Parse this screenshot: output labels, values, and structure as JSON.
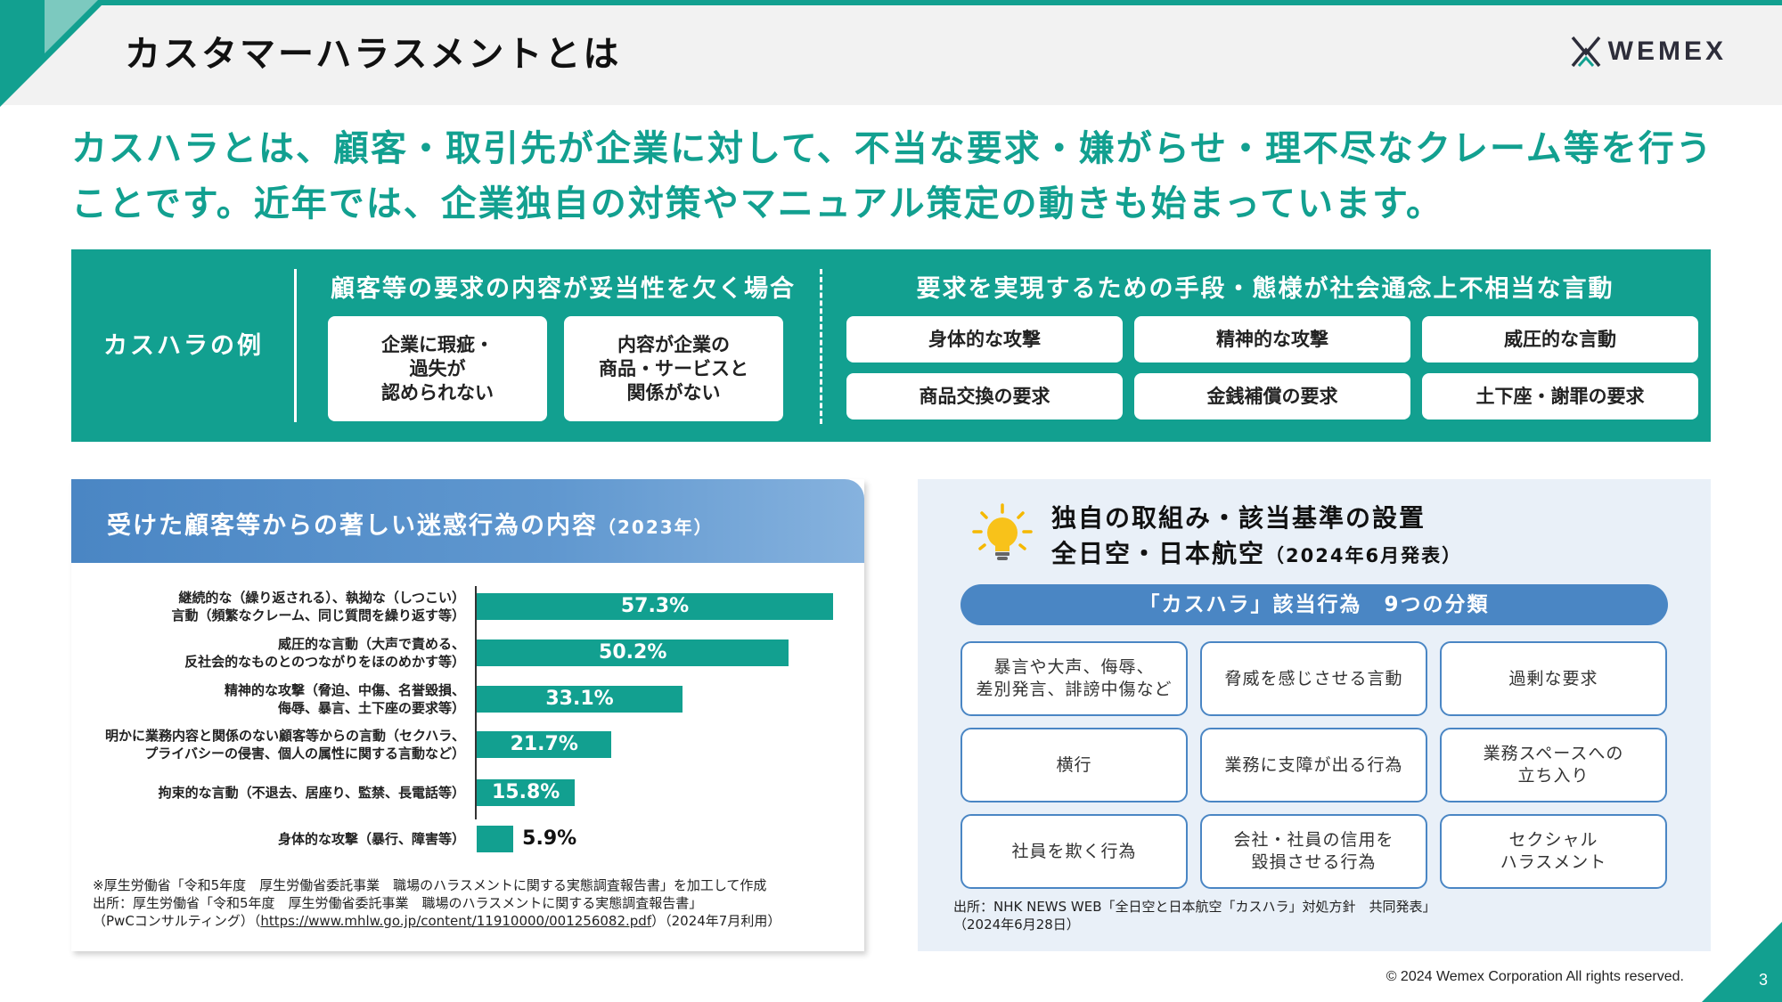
{
  "header": {
    "title": "カスタマーハラスメントとは",
    "logo_text": "WEMEX"
  },
  "lead": {
    "text": "カスハラとは、顧客・取引先が企業に対して、不当な要求・嫌がらせ・理不尽なクレーム等を行うことです。近年では、企業独自の対策やマニュアル策定の動きも始まっています。"
  },
  "examples": {
    "label": "カスハラの例",
    "group1_title": "顧客等の要求の内容が妥当性を欠く場合",
    "group1_items": [
      "企業に瑕疵・\n過失が\n認められない",
      "内容が企業の\n商品・サービスと\n関係がない"
    ],
    "group2_title": "要求を実現するための手段・態様が社会通念上不相当な言動",
    "group2_items": [
      "身体的な攻撃",
      "精神的な攻撃",
      "威圧的な言動",
      "商品交換の要求",
      "金銭補償の要求",
      "土下座・謝罪の要求"
    ]
  },
  "left_panel": {
    "title": "受けた顧客等からの著しい迷惑行為の内容",
    "title_year": "（2023年）",
    "note": "※厚生労働省「令和5年度　厚生労働省委託事業　職場のハラスメントに関する実態調査報告書」を加工して作成",
    "source1": "出所：厚生労働省「令和5年度　厚生労働省委託事業　職場のハラスメントに関する実態調査報告書」",
    "source2_pre": "（PwCコンサルティング）（",
    "source2_link": "https://www.mhlw.go.jp/content/11910000/001256082.pdf",
    "source2_post": "）（2024年7月利用）"
  },
  "chart_data": {
    "type": "bar",
    "orientation": "horizontal",
    "categories": [
      "継続的な（繰り返される）、執拗な（しつこい）\n言動（頻繁なクレーム、同じ質問を繰り返す等）",
      "威圧的な言動（大声で責める、\n反社会的なものとのつながりをほのめかす等）",
      "精神的な攻撃（脅迫、中傷、名誉毀損、\n侮辱、暴言、土下座の要求等）",
      "明かに業務内容と関係のない顧客等からの言動（セクハラ、\nプライバシーの侵害、個人の属性に関する言動など）",
      "拘束的な言動（不退去、居座り、監禁、長電話等）",
      "身体的な攻撃（暴行、障害等）"
    ],
    "values": [
      57.3,
      50.2,
      33.1,
      21.7,
      15.8,
      5.9
    ],
    "value_labels": [
      "57.3%",
      "50.2%",
      "33.1%",
      "21.7%",
      "15.8%",
      "5.9%"
    ],
    "unit": "%",
    "bar_color": "#12a090"
  },
  "right_panel": {
    "title1": "独自の取組み・該当基準の設置",
    "title2": "全日空・日本航空",
    "title2_sub": "（2024年6月発表）",
    "pill": "「カスハラ」該当行為　9つの分類",
    "categories": [
      "暴言や大声、侮辱、\n差別発言、誹謗中傷など",
      "脅威を感じさせる言動",
      "過剰な要求",
      "横行",
      "業務に支障が出る行為",
      "業務スペースへの\n立ち入り",
      "社員を欺く行為",
      "会社・社員の信用を\n毀損させる行為",
      "セクシャル\nハラスメント"
    ],
    "source1": "出所：NHK NEWS WEB「全日空と日本航空「カスハラ」対処方針　共同発表」",
    "source2": "（2024年6月28日）"
  },
  "footer": {
    "copyright": "© 2024 Wemex Corporation All rights reserved.",
    "page_number": "3"
  },
  "colors": {
    "teal": "#12a090",
    "blue": "#4a86c4",
    "light_blue_bg": "#e9f0f8"
  }
}
